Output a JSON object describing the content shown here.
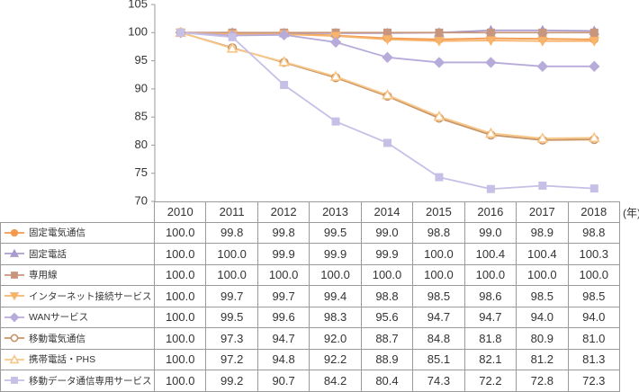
{
  "chart_data": {
    "type": "line",
    "x": [
      "2010",
      "2011",
      "2012",
      "2013",
      "2014",
      "2015",
      "2016",
      "2017",
      "2018"
    ],
    "x_unit": "(年)",
    "ylim": [
      70,
      105
    ],
    "yticks": [
      105,
      100,
      95,
      90,
      85,
      80,
      75,
      70
    ],
    "grid": false,
    "series": [
      {
        "name": "固定電気通信",
        "values": [
          100.0,
          99.8,
          99.8,
          99.5,
          99.0,
          98.8,
          99.0,
          98.9,
          98.8
        ],
        "color": "#F39A4E",
        "marker": "circle",
        "marker_fill": "solid"
      },
      {
        "name": "固定電話",
        "values": [
          100.0,
          100.0,
          99.9,
          99.9,
          99.9,
          100.0,
          100.4,
          100.4,
          100.3
        ],
        "color": "#A99BCE",
        "marker": "triangle-up",
        "marker_fill": "solid"
      },
      {
        "name": "専用線",
        "values": [
          100.0,
          100.0,
          100.0,
          100.0,
          100.0,
          100.0,
          100.0,
          100.0,
          100.0
        ],
        "color": "#C8967C",
        "marker": "square",
        "marker_fill": "solid"
      },
      {
        "name": "インターネット接続サービス",
        "values": [
          100.0,
          99.7,
          99.7,
          99.4,
          98.8,
          98.5,
          98.6,
          98.5,
          98.5
        ],
        "color": "#F7B46C",
        "marker": "triangle-down",
        "marker_fill": "solid"
      },
      {
        "name": "WANサービス",
        "values": [
          100.0,
          99.5,
          99.6,
          98.3,
          95.6,
          94.7,
          94.7,
          94.0,
          94.0
        ],
        "color": "#B7ABDA",
        "marker": "diamond",
        "marker_fill": "solid"
      },
      {
        "name": "移動電気通信",
        "values": [
          100.0,
          97.3,
          94.7,
          92.0,
          88.7,
          84.8,
          81.8,
          80.9,
          81.0
        ],
        "color": "#C79467",
        "marker": "circle",
        "marker_fill": "hollow"
      },
      {
        "name": "携帯電話・PHS",
        "values": [
          100.0,
          97.2,
          94.8,
          92.2,
          88.9,
          85.1,
          82.1,
          81.2,
          81.3
        ],
        "color": "#F8C686",
        "marker": "triangle-up",
        "marker_fill": "hollow"
      },
      {
        "name": "移動データ通信専用サービス",
        "values": [
          100.0,
          99.2,
          90.7,
          84.2,
          80.4,
          74.3,
          72.2,
          72.8,
          72.3
        ],
        "color": "#C6BFE6",
        "marker": "square",
        "marker_fill": "solid"
      }
    ]
  }
}
